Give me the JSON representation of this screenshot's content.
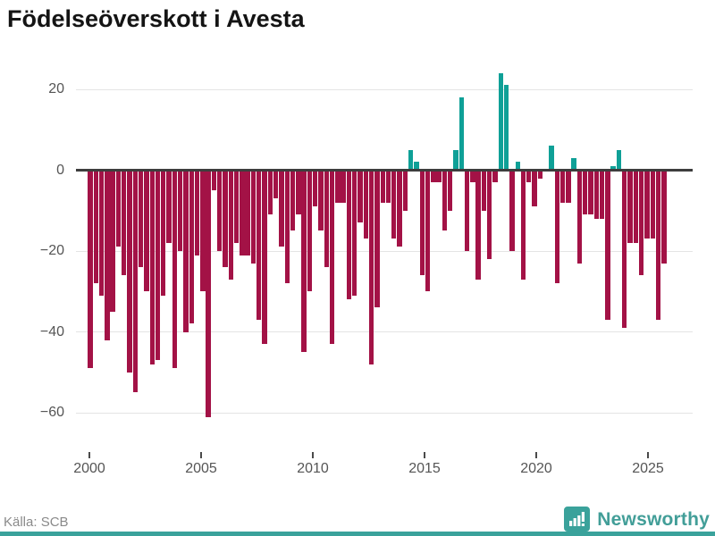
{
  "title": "Födelseöverskott i Avesta",
  "source": "Källa: SCB",
  "brand": {
    "name": "Newsworthy",
    "logo_icon": "bar-chart-speech-bubble"
  },
  "colors": {
    "negative_bar": "#a31246",
    "positive_bar": "#0fa097",
    "zero_line": "#3d3d3d",
    "gridline": "#e4e4e4",
    "brand_teal": "#3aa29b",
    "axis_text": "#555555",
    "title_text": "#141414",
    "source_text": "#8a8a8a"
  },
  "chart_data": {
    "type": "bar",
    "title": "Födelseöverskott i Avesta",
    "frequency": "quarterly",
    "xlabel": "",
    "ylabel": "",
    "ylim": [
      -65,
      27
    ],
    "grid": "horizontal",
    "y_ticks": [
      20,
      0,
      -20,
      -40,
      -60
    ],
    "x_ticks": [
      2000,
      2005,
      2010,
      2015,
      2020,
      2025
    ],
    "years": [
      {
        "year": 2000,
        "values": [
          -49,
          -28,
          -31,
          -42
        ]
      },
      {
        "year": 2001,
        "values": [
          -35,
          -19,
          -26,
          -50
        ]
      },
      {
        "year": 2002,
        "values": [
          -55,
          -24,
          -30,
          -48
        ]
      },
      {
        "year": 2003,
        "values": [
          -47,
          -31,
          -18,
          -49
        ]
      },
      {
        "year": 2004,
        "values": [
          -20,
          -40,
          -38,
          -21
        ]
      },
      {
        "year": 2005,
        "values": [
          -30,
          -61,
          -5,
          -20
        ]
      },
      {
        "year": 2006,
        "values": [
          -24,
          -27,
          -18,
          -21
        ]
      },
      {
        "year": 2007,
        "values": [
          -21,
          -23,
          -37,
          -43
        ]
      },
      {
        "year": 2008,
        "values": [
          -11,
          -7,
          -19,
          -28
        ]
      },
      {
        "year": 2009,
        "values": [
          -15,
          -11,
          -45,
          -30
        ]
      },
      {
        "year": 2010,
        "values": [
          -9,
          -15,
          -24,
          -43
        ]
      },
      {
        "year": 2011,
        "values": [
          -8,
          -8,
          -32,
          -31
        ]
      },
      {
        "year": 2012,
        "values": [
          -13,
          -17,
          -48,
          -34
        ]
      },
      {
        "year": 2013,
        "values": [
          -8,
          -8,
          -17,
          -19
        ]
      },
      {
        "year": 2014,
        "values": [
          -10,
          5,
          2,
          -26
        ]
      },
      {
        "year": 2015,
        "values": [
          -30,
          -3,
          -3,
          -15
        ]
      },
      {
        "year": 2016,
        "values": [
          -10,
          5,
          18,
          -20
        ]
      },
      {
        "year": 2017,
        "values": [
          -3,
          -27,
          -10,
          -22
        ]
      },
      {
        "year": 2018,
        "values": [
          -3,
          24,
          21,
          -20
        ]
      },
      {
        "year": 2019,
        "values": [
          2,
          -27,
          -3,
          -9
        ]
      },
      {
        "year": 2020,
        "values": [
          -2,
          0,
          6,
          -28
        ]
      },
      {
        "year": 2021,
        "values": [
          -8,
          -8,
          3,
          -23
        ]
      },
      {
        "year": 2022,
        "values": [
          -11,
          -11,
          -12,
          -12
        ]
      },
      {
        "year": 2023,
        "values": [
          -37,
          1,
          5,
          -39
        ]
      },
      {
        "year": 2024,
        "values": [
          -18,
          -18,
          -26,
          -17
        ]
      },
      {
        "year": 2025,
        "values": [
          -17,
          -37,
          -23
        ]
      }
    ]
  }
}
